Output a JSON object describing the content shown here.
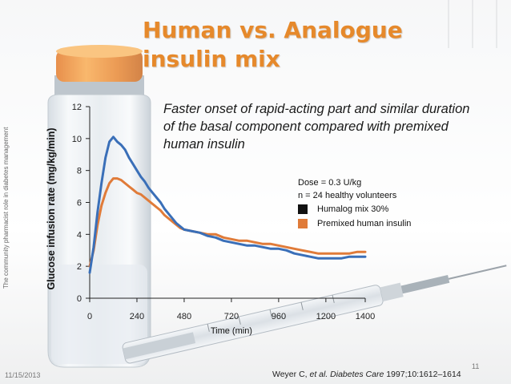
{
  "slide": {
    "title_line1": "Human vs. Analogue",
    "title_line2": "insulin mix",
    "subtitle": "Faster onset of rapid-acting part and similar duration of the basal component compared with premixed human insulin",
    "side_caption": "The community pharmacist role in diabetes management",
    "date": "11/15/2013",
    "page_number": "11",
    "citation": {
      "prefix": "Weyer C, ",
      "italic": "et al. Diabetes Care",
      "suffix": " 1997;10:1612–1614"
    },
    "title_color": "#e6892b"
  },
  "chart_data": {
    "type": "line",
    "xlabel": "Time (min)",
    "ylabel": "Glucose infusion rate (mg/kg/min)",
    "xlim": [
      0,
      1400
    ],
    "ylim": [
      0,
      12
    ],
    "x_ticks": [
      0,
      240,
      480,
      720,
      960,
      1200,
      1400
    ],
    "y_ticks": [
      0,
      2,
      4,
      6,
      8,
      10,
      12
    ],
    "grid": false,
    "annotations": {
      "dose": "Dose = 0.3 U/kg",
      "subjects": "n = 24 healthy volunteers"
    },
    "legend_position": "right",
    "series": [
      {
        "name": "Humalog mix 30%",
        "legend_swatch": "#111111",
        "line_color": "#3a6fb8",
        "x": [
          0,
          20,
          40,
          60,
          80,
          100,
          120,
          140,
          160,
          180,
          200,
          220,
          240,
          260,
          280,
          300,
          320,
          340,
          360,
          380,
          400,
          420,
          440,
          460,
          480,
          520,
          560,
          600,
          640,
          680,
          720,
          760,
          800,
          840,
          880,
          920,
          960,
          1000,
          1040,
          1080,
          1120,
          1160,
          1200,
          1240,
          1280,
          1320,
          1360,
          1400
        ],
        "y": [
          1.6,
          3.2,
          5.4,
          7.2,
          8.8,
          9.8,
          10.1,
          9.8,
          9.6,
          9.3,
          8.8,
          8.4,
          8.0,
          7.6,
          7.3,
          6.9,
          6.6,
          6.3,
          6.0,
          5.6,
          5.3,
          5.0,
          4.7,
          4.5,
          4.3,
          4.2,
          4.1,
          3.9,
          3.8,
          3.6,
          3.5,
          3.4,
          3.3,
          3.3,
          3.2,
          3.1,
          3.1,
          3.0,
          2.8,
          2.7,
          2.6,
          2.5,
          2.5,
          2.5,
          2.5,
          2.6,
          2.6,
          2.6
        ]
      },
      {
        "name": "Premixed human insulin",
        "legend_swatch": "#e07b39",
        "line_color": "#e07b39",
        "x": [
          0,
          20,
          40,
          60,
          80,
          100,
          120,
          140,
          160,
          180,
          200,
          220,
          240,
          260,
          280,
          300,
          320,
          340,
          360,
          380,
          400,
          420,
          440,
          460,
          480,
          520,
          560,
          600,
          640,
          680,
          720,
          760,
          800,
          840,
          880,
          920,
          960,
          1000,
          1040,
          1080,
          1120,
          1160,
          1200,
          1240,
          1280,
          1320,
          1360,
          1400
        ],
        "y": [
          2.0,
          3.0,
          4.6,
          5.8,
          6.6,
          7.2,
          7.5,
          7.5,
          7.4,
          7.2,
          7.0,
          6.8,
          6.6,
          6.5,
          6.3,
          6.1,
          5.9,
          5.7,
          5.5,
          5.2,
          5.0,
          4.8,
          4.6,
          4.4,
          4.3,
          4.2,
          4.1,
          4.0,
          4.0,
          3.8,
          3.7,
          3.6,
          3.6,
          3.5,
          3.4,
          3.4,
          3.3,
          3.2,
          3.1,
          3.0,
          2.9,
          2.8,
          2.8,
          2.8,
          2.8,
          2.8,
          2.9,
          2.9
        ]
      }
    ]
  }
}
